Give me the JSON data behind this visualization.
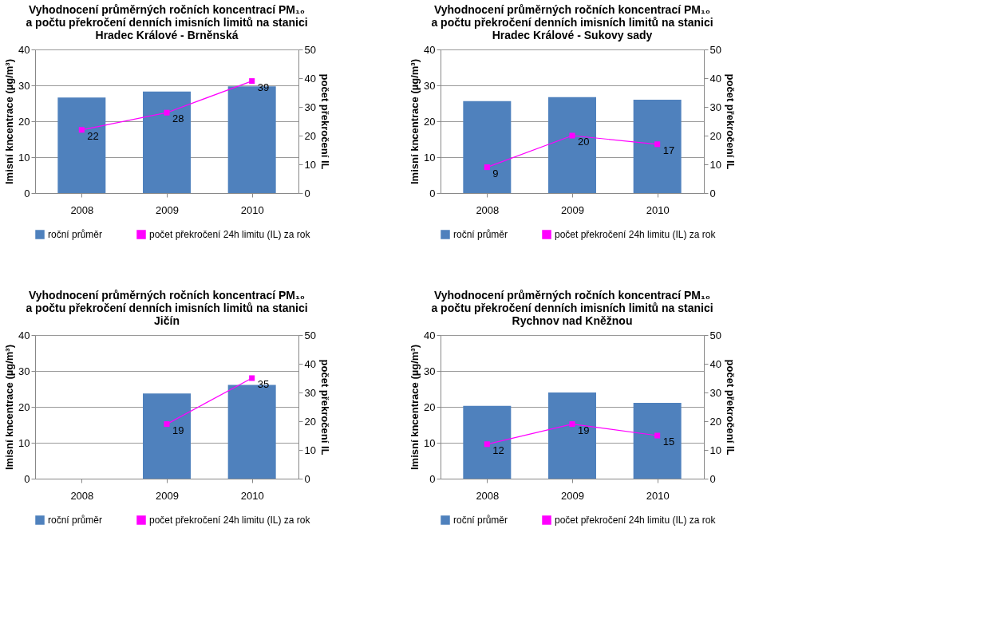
{
  "chart_data": [
    {
      "type": "bar",
      "title": "Vyhodnocení průměrných ročních koncentrací PM₁₀\na počtu překročení denních imisních limitů na stanici\nHradec Králové - Brněnská",
      "ylabel": "Imisní kncentrace (µg/m³)",
      "y2label": "počet překročení IL",
      "categories": [
        "2008",
        "2009",
        "2010"
      ],
      "ylim": [
        0,
        40
      ],
      "yticks": [
        0,
        10,
        20,
        30,
        40
      ],
      "y2lim": [
        0,
        50
      ],
      "y2ticks": [
        0,
        10,
        20,
        30,
        40,
        50
      ],
      "grid": "y",
      "legend": "bottom",
      "series": [
        {
          "name": "roční průměr",
          "color": "#4f81bd",
          "values": [
            26.6,
            28.3,
            29.7
          ]
        },
        {
          "name": "počet překročení 24h limitu (IL) za rok",
          "type": "line",
          "axis": "y2",
          "marker": "square",
          "color": "#ff00ff",
          "values": [
            22,
            28,
            39
          ],
          "value_labels": [
            "22",
            "28",
            "39"
          ]
        }
      ]
    },
    {
      "type": "bar",
      "title": "Vyhodnocení průměrných ročních koncentrací PM₁₀\na počtu překročení denních imisních limitů na stanici\nHradec Králové - Sukovy sady",
      "ylabel": "Imisní kncentrace (µg/m³)",
      "y2label": "počet překročení IL",
      "categories": [
        "2008",
        "2009",
        "2010"
      ],
      "ylim": [
        0,
        40
      ],
      "yticks": [
        0,
        10,
        20,
        30,
        40
      ],
      "y2lim": [
        0,
        50
      ],
      "y2ticks": [
        0,
        10,
        20,
        30,
        40,
        50
      ],
      "grid": "y",
      "legend": "bottom",
      "series": [
        {
          "name": "roční průměr",
          "color": "#4f81bd",
          "values": [
            25.6,
            26.7,
            26.0
          ]
        },
        {
          "name": "počet překročení 24h limitu (IL) za rok",
          "type": "line",
          "axis": "y2",
          "marker": "square",
          "color": "#ff00ff",
          "values": [
            9,
            20,
            17
          ],
          "value_labels": [
            "9",
            "20",
            "17"
          ]
        }
      ]
    },
    {
      "type": "bar",
      "title": "Vyhodnocení průměrných ročních koncentrací PM₁₀\na počtu překročení denních imisních limitů na stanici\nJičín",
      "ylabel": "Imisní kncentrace (µg/m³)",
      "y2label": "počet překročení IL",
      "categories": [
        "2008",
        "2009",
        "2010"
      ],
      "ylim": [
        0,
        40
      ],
      "yticks": [
        0,
        10,
        20,
        30,
        40
      ],
      "y2lim": [
        0,
        50
      ],
      "y2ticks": [
        0,
        10,
        20,
        30,
        40,
        50
      ],
      "grid": "y",
      "legend": "bottom",
      "series": [
        {
          "name": "roční průměr",
          "color": "#4f81bd",
          "values": [
            null,
            23.7,
            26.1
          ]
        },
        {
          "name": "počet překročení 24h limitu (IL) za rok",
          "type": "line",
          "axis": "y2",
          "marker": "square",
          "color": "#ff00ff",
          "values": [
            null,
            19,
            35
          ],
          "value_labels": [
            null,
            "19",
            "35"
          ]
        }
      ]
    },
    {
      "type": "bar",
      "title": "Vyhodnocení průměrných ročních koncentrací PM₁₀\na počtu překročení denních imisních limitů na stanici\nRychnov nad Kněžnou",
      "ylabel": "Imisní kncentrace (µg/m³)",
      "y2label": "počet překročení IL",
      "categories": [
        "2008",
        "2009",
        "2010"
      ],
      "ylim": [
        0,
        40
      ],
      "yticks": [
        0,
        10,
        20,
        30,
        40
      ],
      "y2lim": [
        0,
        50
      ],
      "y2ticks": [
        0,
        10,
        20,
        30,
        40,
        50
      ],
      "grid": "y",
      "legend": "bottom",
      "series": [
        {
          "name": "roční průměr",
          "color": "#4f81bd",
          "values": [
            20.3,
            24.0,
            21.1
          ]
        },
        {
          "name": "počet překročení 24h limitu (IL) za rok",
          "type": "line",
          "axis": "y2",
          "marker": "square",
          "color": "#ff00ff",
          "values": [
            12,
            19,
            15
          ],
          "value_labels": [
            "12",
            "19",
            "15"
          ]
        }
      ]
    }
  ]
}
